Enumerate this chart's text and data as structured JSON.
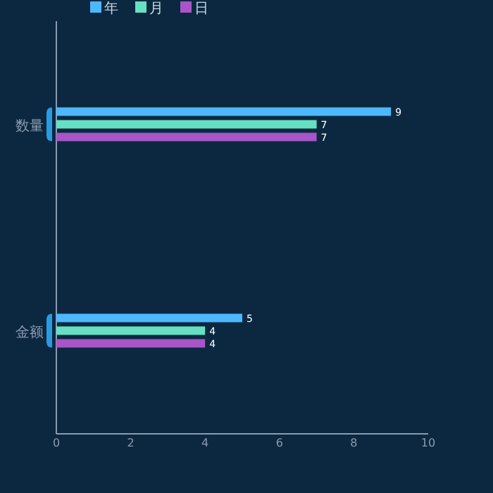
{
  "chart_data": {
    "type": "bar",
    "orientation": "horizontal",
    "categories": [
      "数量",
      "金额"
    ],
    "series": [
      {
        "name": "年",
        "color": "#4db8ff",
        "values": [
          9,
          5
        ]
      },
      {
        "name": "月",
        "color": "#66e0c2",
        "values": [
          7,
          4
        ]
      },
      {
        "name": "日",
        "color": "#a855c8",
        "values": [
          7,
          4
        ]
      }
    ],
    "xlim": [
      0,
      10
    ],
    "xticks": [
      0,
      2,
      4,
      6,
      8,
      10
    ],
    "data_labels": true,
    "legend": "top",
    "grid": false
  }
}
